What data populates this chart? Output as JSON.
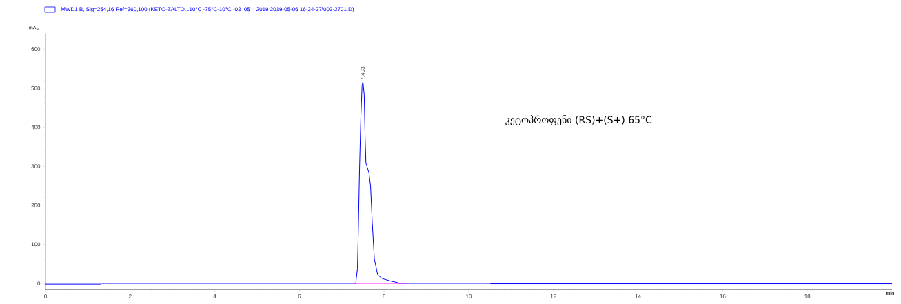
{
  "chart_data": {
    "type": "line",
    "xlabel": "min",
    "ylabel": "mAU",
    "series": [
      {
        "name": "MWD1 B, Sig=254,16 Ref=360,100 (KETO-ZALTO...10°C -75°C-10°C -03_05__2019 2019-05-06 16-34-27\\003-2701.D)",
        "color": "#0000ff",
        "x": [
          0,
          1.3,
          1.32,
          7.33,
          7.37,
          7.39,
          7.42,
          7.45,
          7.48,
          7.5,
          7.53,
          7.55,
          7.57,
          7.64,
          7.68,
          7.72,
          7.77,
          7.85,
          7.96,
          8.15,
          8.32,
          8.35,
          10.5,
          10.52,
          20
        ],
        "values": [
          -2,
          -2,
          0,
          0,
          38,
          132,
          296,
          424,
          507,
          516,
          483,
          378,
          308,
          284,
          249,
          156,
          62,
          21,
          12,
          6,
          2,
          0,
          0,
          -1,
          -1
        ]
      },
      {
        "color": "#ff00ff",
        "x": [
          7.3,
          8.55
        ],
        "values": [
          0,
          0
        ]
      }
    ],
    "xlim": [
      0,
      20
    ],
    "ylim": [
      -15,
      640
    ],
    "xticks": [
      0,
      2,
      4,
      6,
      8,
      10,
      12,
      14,
      16,
      18
    ],
    "yticks": [
      0,
      100,
      200,
      300,
      400,
      500,
      600
    ],
    "legend": "top left",
    "grid": false,
    "marker": "none",
    "line_style": "solid",
    "annotations": [
      {
        "text": "7.493",
        "x": 7.493,
        "y": 516
      },
      "კეტოპროფენი (RS)+(S+) 65°C"
    ]
  }
}
